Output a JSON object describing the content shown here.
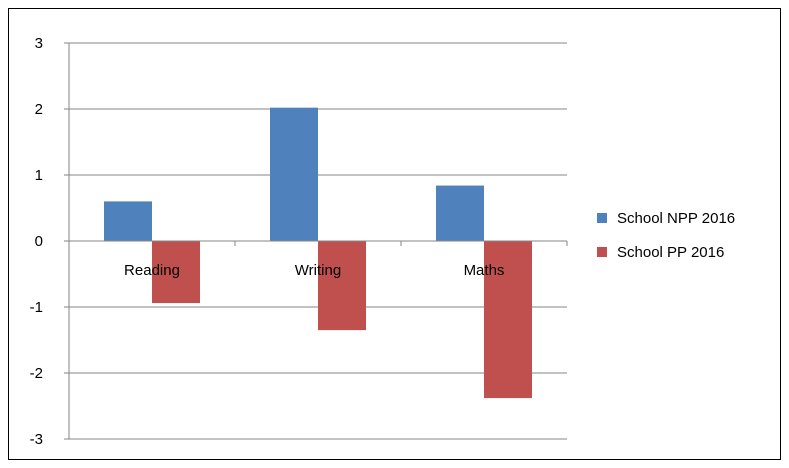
{
  "chart_data": {
    "type": "bar",
    "categories": [
      "Reading",
      "Writing",
      "Maths"
    ],
    "series": [
      {
        "name": "School NPP 2016",
        "values": [
          0.6,
          2.02,
          0.84
        ],
        "color": "#4f81bd"
      },
      {
        "name": "School PP 2016",
        "values": [
          -0.94,
          -1.35,
          -2.38
        ],
        "color": "#c0504d"
      }
    ],
    "ylim": [
      -3,
      3
    ],
    "yticks": [
      "3",
      "2",
      "1",
      "0",
      "-1",
      "-2",
      "-3"
    ],
    "grid": true,
    "legend_position": "right",
    "title": "",
    "xlabel": "",
    "ylabel": ""
  }
}
